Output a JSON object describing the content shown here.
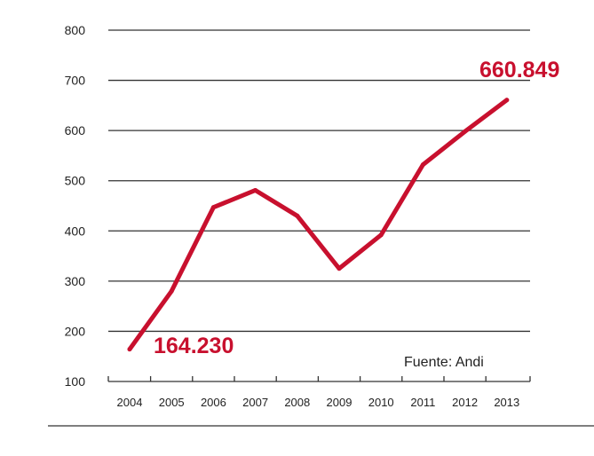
{
  "chart_data": {
    "type": "line",
    "title": "",
    "xlabel": "",
    "ylabel": "",
    "categories": [
      "2004",
      "2005",
      "2006",
      "2007",
      "2008",
      "2009",
      "2010",
      "2011",
      "2012",
      "2013"
    ],
    "series": [
      {
        "values": [
          164.23,
          280,
          447,
          481,
          430,
          325,
          392,
          532,
          598,
          660.849
        ]
      }
    ],
    "yticks": [
      "100",
      "200",
      "300",
      "400",
      "500",
      "600",
      "700",
      "800"
    ],
    "ylim": [
      100,
      800
    ],
    "grid": true,
    "line_color": "#c8102e",
    "annotations": {
      "start": "164.230",
      "end": "660.849"
    },
    "source": "Fuente: Andi"
  }
}
